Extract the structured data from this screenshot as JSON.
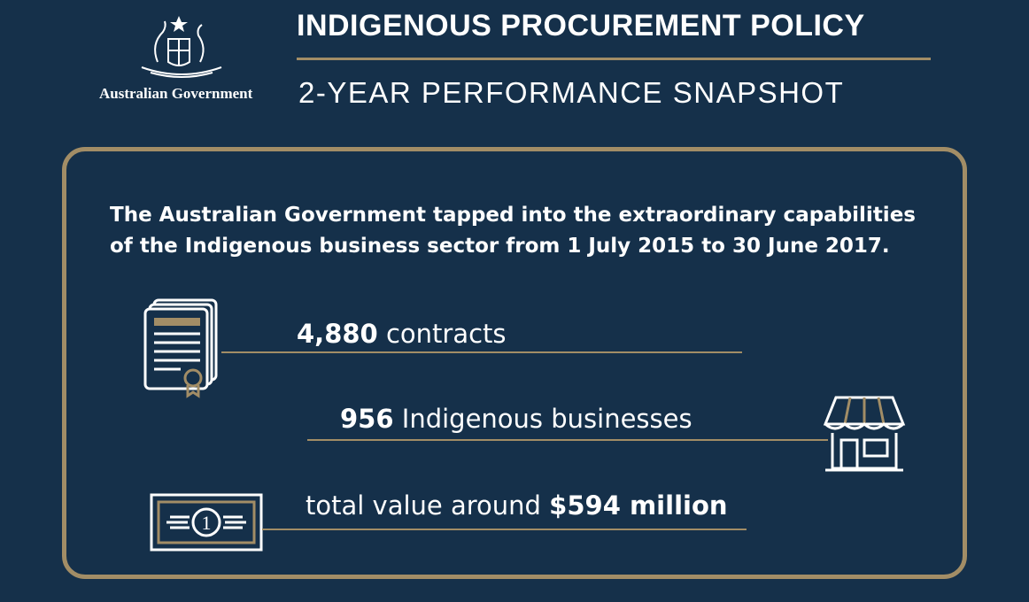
{
  "logo": {
    "text": "Australian Government"
  },
  "header": {
    "title": "INDIGENOUS PROCUREMENT POLICY",
    "subtitle": "2-YEAR PERFORMANCE SNAPSHOT"
  },
  "intro_lines": [
    "The Australian Government tapped into the extraordinary capabilities",
    "of the Indigenous business sector from 1 July 2015 to 30 June 2017."
  ],
  "stats": [
    {
      "value": "4,880",
      "label": "contracts"
    },
    {
      "value": "956",
      "label": "Indigenous businesses"
    },
    {
      "prefix": "total value around",
      "value": "$594 million"
    }
  ],
  "icons": {
    "banknote_label": "1"
  }
}
